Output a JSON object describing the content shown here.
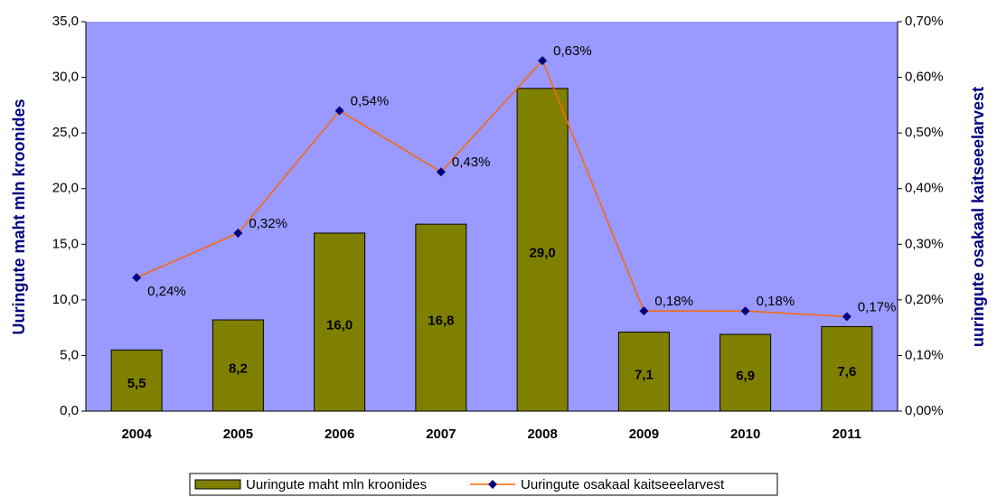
{
  "chart_data": {
    "type": "bar-line",
    "categories": [
      "2004",
      "2005",
      "2006",
      "2007",
      "2008",
      "2009",
      "2010",
      "2011"
    ],
    "series": [
      {
        "name": "Uuringute maht mln kroonides",
        "type": "bar",
        "color": "#808000",
        "values": [
          5.5,
          8.2,
          16.0,
          16.8,
          29.0,
          7.1,
          6.9,
          7.6
        ],
        "value_labels": [
          "5,5",
          "8,2",
          "16,0",
          "16,8",
          "29,0",
          "7,1",
          "6,9",
          "7,6"
        ]
      },
      {
        "name": "Uuringute osakaal kaitseeelarvest",
        "type": "line",
        "axis": "y2",
        "color": "#ff6600",
        "marker_color": "#000080",
        "values": [
          0.24,
          0.32,
          0.54,
          0.43,
          0.63,
          0.18,
          0.18,
          0.17
        ],
        "value_labels": [
          "0,24%",
          "0,32%",
          "0,54%",
          "0,43%",
          "0,63%",
          "0,18%",
          "0,18%",
          "0,17%"
        ]
      }
    ],
    "ylabel": "Uuringute maht mln kroonides",
    "y2label": "uuringute osakaal kaitseeelarvest",
    "ylim": [
      0,
      35
    ],
    "yticks": [
      {
        "value": 0,
        "label": "0,0"
      },
      {
        "value": 5,
        "label": "5,0"
      },
      {
        "value": 10,
        "label": "10,0"
      },
      {
        "value": 15,
        "label": "15,0"
      },
      {
        "value": 20,
        "label": "20,0"
      },
      {
        "value": 25,
        "label": "25,0"
      },
      {
        "value": 30,
        "label": "30,0"
      },
      {
        "value": 35,
        "label": "35,0"
      }
    ],
    "y2lim": [
      0,
      0.7
    ],
    "y2ticks": [
      {
        "value": 0,
        "label": "0,00%"
      },
      {
        "value": 0.1,
        "label": "0,10%"
      },
      {
        "value": 0.2,
        "label": "0,20%"
      },
      {
        "value": 0.3,
        "label": "0,30%"
      },
      {
        "value": 0.4,
        "label": "0,40%"
      },
      {
        "value": 0.5,
        "label": "0,50%"
      },
      {
        "value": 0.6,
        "label": "0,60%"
      },
      {
        "value": 0.7,
        "label": "0,70%"
      }
    ],
    "plot_background": "#9999ff",
    "legend": "bottom"
  }
}
